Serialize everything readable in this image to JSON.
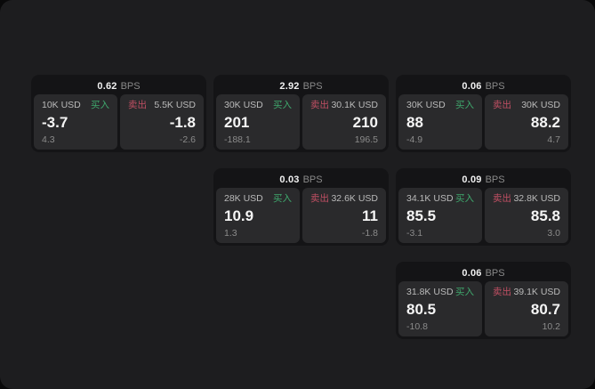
{
  "labels": {
    "bps_unit": "BPS",
    "buy": "买入",
    "sell": "卖出"
  },
  "colors": {
    "background": "#09090a",
    "panel": "#1d1d1f",
    "card": "#141416",
    "pane": "#2a2a2c",
    "buy_green": "#3fa86d",
    "sell_red": "#c04f63",
    "primary_text": "#f5f5f5",
    "muted_text": "#8b8b8b"
  },
  "cards": [
    {
      "bps": "0.62",
      "buy": {
        "size": "10K USD",
        "price": "-3.7",
        "change": "4.3"
      },
      "sell": {
        "size": "5.5K USD",
        "price": "-1.8",
        "change": "-2.6"
      }
    },
    {
      "bps": "2.92",
      "buy": {
        "size": "30K USD",
        "price": "201",
        "change": "-188.1"
      },
      "sell": {
        "size": "30.1K USD",
        "price": "210",
        "change": "196.5"
      }
    },
    {
      "bps": "0.06",
      "buy": {
        "size": "30K USD",
        "price": "88",
        "change": "-4.9"
      },
      "sell": {
        "size": "30K USD",
        "price": "88.2",
        "change": "4.7"
      }
    },
    {
      "bps": "0.03",
      "buy": {
        "size": "28K USD",
        "price": "10.9",
        "change": "1.3"
      },
      "sell": {
        "size": "32.6K USD",
        "price": "11",
        "change": "-1.8"
      }
    },
    {
      "bps": "0.09",
      "buy": {
        "size": "34.1K USD",
        "price": "85.5",
        "change": "-3.1"
      },
      "sell": {
        "size": "32.8K USD",
        "price": "85.8",
        "change": "3.0"
      }
    },
    {
      "bps": "0.06",
      "buy": {
        "size": "31.8K USD",
        "price": "80.5",
        "change": "-10.8"
      },
      "sell": {
        "size": "39.1K USD",
        "price": "80.7",
        "change": "10.2"
      }
    }
  ]
}
